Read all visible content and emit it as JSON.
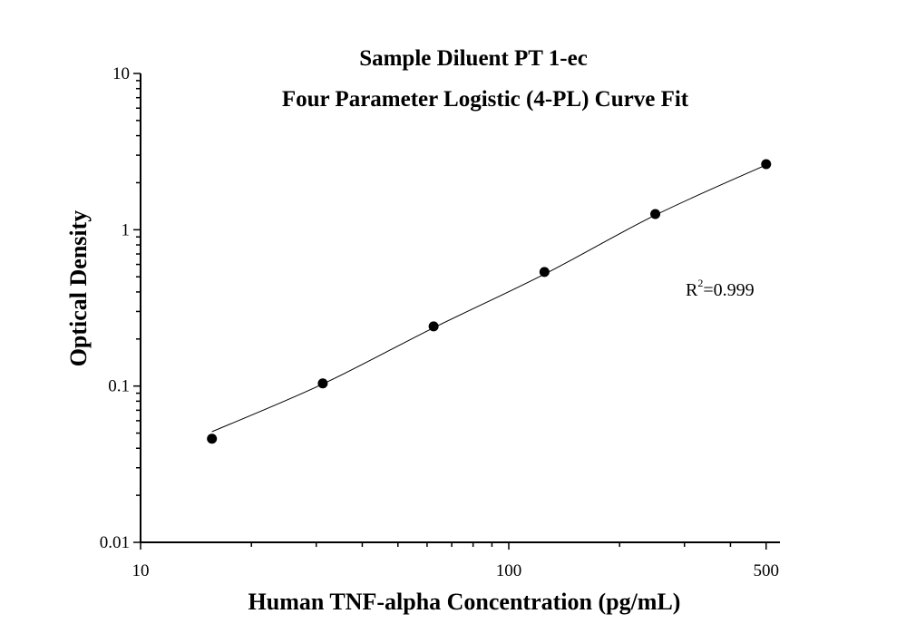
{
  "chart_data": {
    "type": "scatter",
    "title": "Sample Diluent PT 1-ec",
    "subtitle": "Four Parameter Logistic (4-PL) Curve Fit",
    "xlabel": "Human TNF-alpha Concentration (pg/mL)",
    "ylabel": "Optical Density",
    "x_scale": "log",
    "y_scale": "log",
    "xlim": [
      10,
      545
    ],
    "ylim": [
      0.01,
      10
    ],
    "x_tick_labels": [
      "10",
      "100",
      "500"
    ],
    "x_ticks": [
      10,
      100,
      500
    ],
    "y_tick_labels": [
      "0.01",
      "0.1",
      "1",
      "10"
    ],
    "y_ticks": [
      0.01,
      0.1,
      1,
      10
    ],
    "grid": false,
    "annotation": {
      "text_main": "R",
      "text_sup": "2",
      "text_rest": "=0.999"
    },
    "series": [
      {
        "x": [
          15.625,
          31.25,
          62.5,
          125,
          250,
          500
        ],
        "y": [
          0.046,
          0.104,
          0.241,
          0.537,
          1.26,
          2.63
        ],
        "marker": "filled-circle",
        "color": "#000000"
      }
    ],
    "fit_curve": {
      "model": "4-PL",
      "x": [
        15.625,
        31.25,
        62.5,
        125,
        250,
        500
      ],
      "y": [
        0.051,
        0.103,
        0.236,
        0.52,
        1.24,
        2.6
      ],
      "color": "#000000"
    }
  }
}
